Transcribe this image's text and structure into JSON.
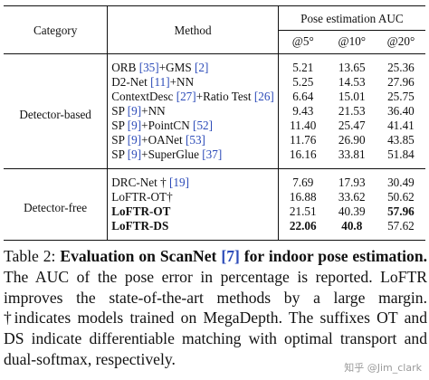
{
  "table": {
    "header": {
      "category": "Category",
      "method": "Method",
      "pose_group": "Pose estimation AUC",
      "thresholds": [
        "@5°",
        "@10°",
        "@20°"
      ]
    },
    "blocks": [
      {
        "category": "Detector-based",
        "rows": [
          {
            "method": "ORB",
            "cite": "[35]",
            "suffix": "+GMS",
            "cite2": "[2]",
            "values": [
              "5.21",
              "13.65",
              "25.36"
            ]
          },
          {
            "method": "D2-Net",
            "cite": "[11]",
            "suffix": "+NN",
            "cite2": "",
            "values": [
              "5.25",
              "14.53",
              "27.96"
            ]
          },
          {
            "method": "ContextDesc",
            "cite": "[27]",
            "suffix": "+Ratio Test",
            "cite2": "[26]",
            "values": [
              "6.64",
              "15.01",
              "25.75"
            ]
          },
          {
            "method": "SP",
            "cite": "[9]",
            "suffix": "+NN",
            "cite2": "",
            "values": [
              "9.43",
              "21.53",
              "36.40"
            ]
          },
          {
            "method": "SP",
            "cite": "[9]",
            "suffix": "+PointCN",
            "cite2": "[52]",
            "values": [
              "11.40",
              "25.47",
              "41.41"
            ]
          },
          {
            "method": "SP",
            "cite": "[9]",
            "suffix": "+OANet",
            "cite2": "[53]",
            "values": [
              "11.76",
              "26.90",
              "43.85"
            ]
          },
          {
            "method": "SP",
            "cite": "[9]",
            "suffix": "+SuperGlue",
            "cite2": "[37]",
            "values": [
              "16.16",
              "33.81",
              "51.84"
            ]
          }
        ]
      },
      {
        "category": "Detector-free",
        "rows": [
          {
            "method": "DRC-Net †",
            "cite": "[19]",
            "suffix": "",
            "cite2": "",
            "values": [
              "7.69",
              "17.93",
              "30.49"
            ]
          },
          {
            "method": "LoFTR-OT†",
            "cite": "",
            "suffix": "",
            "cite2": "",
            "values": [
              "16.88",
              "33.62",
              "50.62"
            ]
          },
          {
            "method": "LoFTR-OT",
            "cite": "",
            "suffix": "",
            "cite2": "",
            "values": [
              "21.51",
              "40.39",
              "57.96"
            ]
          },
          {
            "method": "LoFTR-DS",
            "cite": "",
            "suffix": "",
            "cite2": "",
            "values": [
              "22.06",
              "40.8",
              "57.62"
            ]
          }
        ]
      }
    ]
  },
  "caption": {
    "label": "Table 2:",
    "bold_text_a": "Evaluation on ScanNet",
    "bold_cite": "[7]",
    "bold_text_b": "for indoor pose estimation.",
    "body": "The AUC of the pose error in percentage is reported. LoFTR improves the state-of-the-art methods by a large margin. †indicates models trained on MegaDepth. The suffixes OT and DS indicate differentiable matching with optimal transport and dual-softmax, respectively."
  },
  "watermark": "知乎 @Jim_clark",
  "colors": {
    "citation": "#2b4ab8",
    "text": "#111111"
  }
}
